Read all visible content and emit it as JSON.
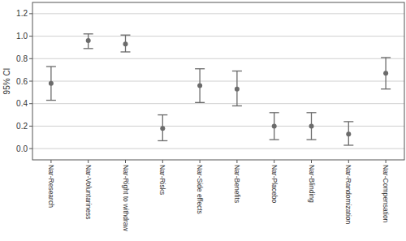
{
  "chart_data": {
    "type": "errorbar",
    "y_label": "95% CI",
    "categories": [
      "Nar-Research",
      "Nar-Voluntariness",
      "Nar-Right to withdraw",
      "Nar-Risks",
      "Nar-Side effects",
      "Nar-Benefits",
      "Nar-Placebo",
      "Nar-Blinding",
      "Nar-Randomization",
      "Nar-Compensation"
    ],
    "values": [
      0.58,
      0.96,
      0.93,
      0.18,
      0.56,
      0.53,
      0.2,
      0.2,
      0.13,
      0.67
    ],
    "ci_lower": [
      0.43,
      0.89,
      0.86,
      0.07,
      0.41,
      0.38,
      0.08,
      0.08,
      0.03,
      0.53
    ],
    "ci_upper": [
      0.73,
      1.02,
      1.01,
      0.3,
      0.71,
      0.69,
      0.32,
      0.32,
      0.24,
      0.81
    ],
    "color": "#6b6b6b",
    "ylim": [
      -0.1,
      1.3
    ],
    "yticks": [
      {
        "value": 0,
        "label": "0.0"
      },
      0.2,
      0.4,
      0.6,
      0.8,
      {
        "value": 1,
        "label": "1.0"
      },
      1.2
    ],
    "grid": true
  }
}
